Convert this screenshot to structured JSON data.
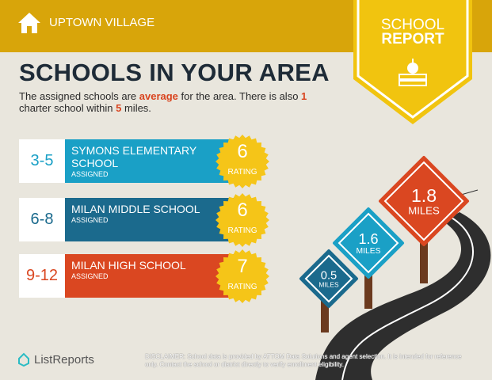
{
  "header": {
    "location": "UPTOWN VILLAGE",
    "badge_line1": "SCHOOL",
    "badge_line2": "REPORT"
  },
  "title": "SCHOOLS IN YOUR AREA",
  "summary": {
    "p1": "The assigned schools are ",
    "rating_word": "average",
    "p2": " for the area. There is also ",
    "charter_count": "1",
    "p3": " charter school within ",
    "radius": "5",
    "p4": " miles."
  },
  "schools": [
    {
      "grades": "3-5",
      "name": "SYMONS ELEMENTARY SCHOOL",
      "status": "ASSIGNED",
      "rating": "6",
      "rating_label": "RATING",
      "color": "#1aa0c6"
    },
    {
      "grades": "6-8",
      "name": "MILAN MIDDLE SCHOOL",
      "status": "ASSIGNED",
      "rating": "6",
      "rating_label": "RATING",
      "color": "#1b6a8d"
    },
    {
      "grades": "9-12",
      "name": "MILAN HIGH SCHOOL",
      "status": "ASSIGNED",
      "rating": "7",
      "rating_label": "RATING",
      "color": "#da4721"
    }
  ],
  "distances": [
    {
      "value": "0.5",
      "unit": "MILES",
      "color": "#1b6a8d"
    },
    {
      "value": "1.6",
      "unit": "MILES",
      "color": "#1aa0c6"
    },
    {
      "value": "1.8",
      "unit": "MILES",
      "color": "#da4721"
    }
  ],
  "footer": {
    "brand": "ListReports",
    "disclaimer_label": "DISCLAIMER:",
    "disclaimer": " School data is provided by ATTOM Data Solutions and agent selection. It is intended for reference only. Contact the school or district directly to verify enrollment eligibility."
  },
  "colors": {
    "header": "#d8a50a",
    "badge": "#f1c40f",
    "star": "#f5c518",
    "background": "#e9e6dd"
  }
}
